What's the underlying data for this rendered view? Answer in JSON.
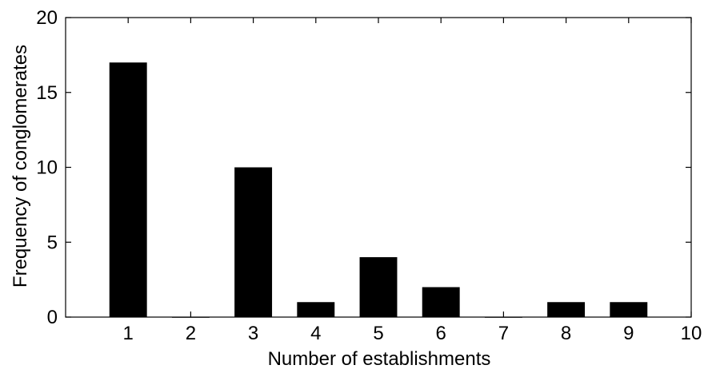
{
  "chart_data": {
    "type": "bar",
    "categories": [
      "1",
      "2",
      "3",
      "4",
      "5",
      "6",
      "7",
      "8",
      "9"
    ],
    "values": [
      17,
      0,
      10,
      1,
      4,
      2,
      0,
      1,
      1
    ],
    "title": "",
    "xlabel": "Number of establishments",
    "ylabel": "Frequency of conglomerates",
    "xlim": [
      0,
      10
    ],
    "ylim": [
      0,
      20
    ],
    "xticks": [
      "1",
      "2",
      "3",
      "4",
      "5",
      "6",
      "7",
      "8",
      "9",
      "10"
    ],
    "yticks": [
      "0",
      "5",
      "10",
      "15",
      "20"
    ],
    "bar_color": "#000000",
    "grid": false,
    "legend": "none"
  }
}
